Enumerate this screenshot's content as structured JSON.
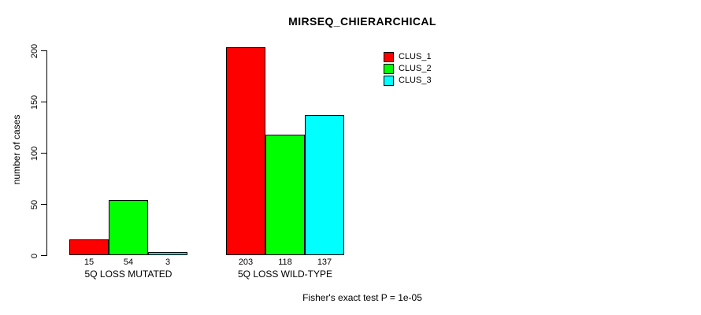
{
  "chart_data": {
    "type": "bar",
    "title": "MIRSEQ_CHIERARCHICAL",
    "ylabel": "number of cases",
    "xlabel": "",
    "ylim": [
      0,
      200
    ],
    "yticks": [
      0,
      50,
      100,
      150,
      200
    ],
    "categories": [
      "5Q LOSS MUTATED",
      "5Q LOSS WILD-TYPE"
    ],
    "series": [
      {
        "name": "CLUS_1",
        "color": "#ff0000",
        "values": [
          15,
          203
        ]
      },
      {
        "name": "CLUS_2",
        "color": "#00ff00",
        "values": [
          54,
          118
        ]
      },
      {
        "name": "CLUS_3",
        "color": "#00ffff",
        "values": [
          3,
          137
        ]
      }
    ],
    "show_bar_values": true,
    "grid": false,
    "legend_position": "top-right",
    "annotation": "Fisher's exact test P = 1e-05"
  }
}
